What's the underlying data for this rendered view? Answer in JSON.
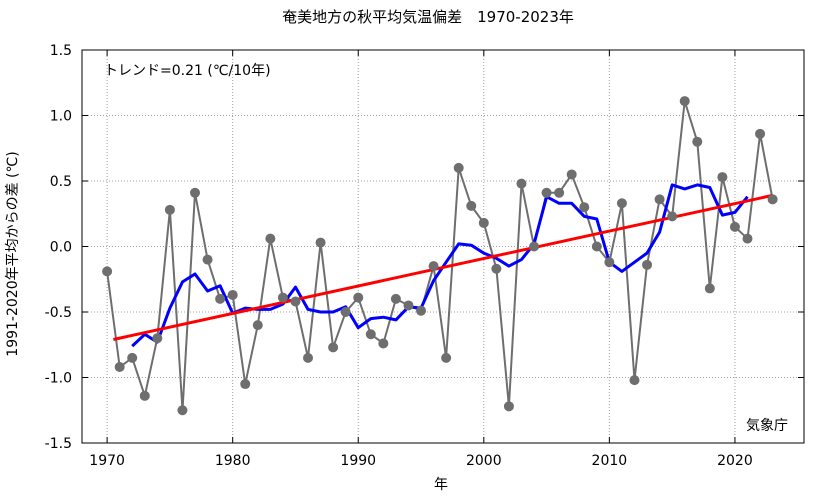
{
  "chart_data": {
    "type": "line",
    "title": "奄美地方の秋平均気温偏差　1970-2023年",
    "xlabel": "年",
    "ylabel": "1991-2020年平均からの差 (℃)",
    "trend_label": "トレンド=0.21 (℃/10年)",
    "source_label": "気象庁",
    "xlim": [
      1968,
      2025.5
    ],
    "ylim": [
      -1.5,
      1.5
    ],
    "x_ticks": [
      1970,
      1980,
      1990,
      2000,
      2010,
      2020
    ],
    "x_tick_labels": [
      "1970",
      "1980",
      "1990",
      "2000",
      "2010",
      "2020"
    ],
    "y_ticks": [
      -1.5,
      -1.0,
      -0.5,
      0.0,
      0.5,
      1.0,
      1.5
    ],
    "y_tick_labels": [
      "-1.5",
      "-1.0",
      "-0.5",
      "0.0",
      "0.5",
      "1.0",
      "1.5"
    ],
    "grid": true,
    "colors": {
      "annual": "#6e6e6e",
      "moving_average": "#0000ff",
      "trend": "#ff0000",
      "grid": "#a0a0a0"
    },
    "series": [
      {
        "kind": "annual",
        "x": [
          1970,
          1971,
          1972,
          1973,
          1974,
          1975,
          1976,
          1977,
          1978,
          1979,
          1980,
          1981,
          1982,
          1983,
          1984,
          1985,
          1986,
          1987,
          1988,
          1989,
          1990,
          1991,
          1992,
          1993,
          1994,
          1995,
          1996,
          1997,
          1998,
          1999,
          2000,
          2001,
          2002,
          2003,
          2004,
          2005,
          2006,
          2007,
          2008,
          2009,
          2010,
          2011,
          2012,
          2013,
          2014,
          2015,
          2016,
          2017,
          2018,
          2019,
          2020,
          2021,
          2022,
          2023
        ],
        "values": [
          -0.19,
          -0.92,
          -0.85,
          -1.14,
          -0.7,
          0.28,
          -1.25,
          0.41,
          -0.1,
          -0.4,
          -0.37,
          -1.05,
          -0.6,
          0.06,
          -0.39,
          -0.42,
          -0.85,
          0.03,
          -0.77,
          -0.5,
          -0.39,
          -0.67,
          -0.74,
          -0.4,
          -0.45,
          -0.49,
          -0.15,
          -0.85,
          0.6,
          0.31,
          0.18,
          -0.17,
          -1.22,
          0.48,
          0.0,
          0.41,
          0.41,
          0.55,
          0.3,
          0.0,
          -0.12,
          0.33,
          -1.02,
          -0.14,
          0.36,
          0.23,
          1.11,
          0.8,
          -0.32,
          0.53,
          0.15,
          0.06,
          0.86,
          0.36
        ]
      },
      {
        "kind": "moving_average",
        "x": [
          1972,
          1973,
          1974,
          1975,
          1976,
          1977,
          1978,
          1979,
          1980,
          1981,
          1982,
          1983,
          1984,
          1985,
          1986,
          1987,
          1988,
          1989,
          1990,
          1991,
          1992,
          1993,
          1994,
          1995,
          1996,
          1997,
          1998,
          1999,
          2000,
          2001,
          2002,
          2003,
          2004,
          2005,
          2006,
          2007,
          2008,
          2009,
          2010,
          2011,
          2012,
          2013,
          2014,
          2015,
          2016,
          2017,
          2018,
          2019,
          2020,
          2021
        ],
        "values": [
          -0.76,
          -0.67,
          -0.73,
          -0.47,
          -0.27,
          -0.21,
          -0.34,
          -0.3,
          -0.51,
          -0.47,
          -0.48,
          -0.48,
          -0.44,
          -0.31,
          -0.48,
          -0.5,
          -0.5,
          -0.46,
          -0.62,
          -0.55,
          -0.54,
          -0.56,
          -0.46,
          -0.47,
          -0.26,
          -0.12,
          0.02,
          0.01,
          -0.05,
          -0.09,
          -0.15,
          -0.1,
          0.02,
          0.38,
          0.33,
          0.33,
          0.23,
          0.21,
          -0.12,
          -0.19,
          -0.12,
          -0.05,
          0.11,
          0.47,
          0.44,
          0.47,
          0.45,
          0.24,
          0.26,
          0.38
        ]
      },
      {
        "kind": "trend",
        "x": [
          1970.5,
          2023
        ],
        "values": [
          -0.71,
          0.39
        ]
      }
    ]
  }
}
